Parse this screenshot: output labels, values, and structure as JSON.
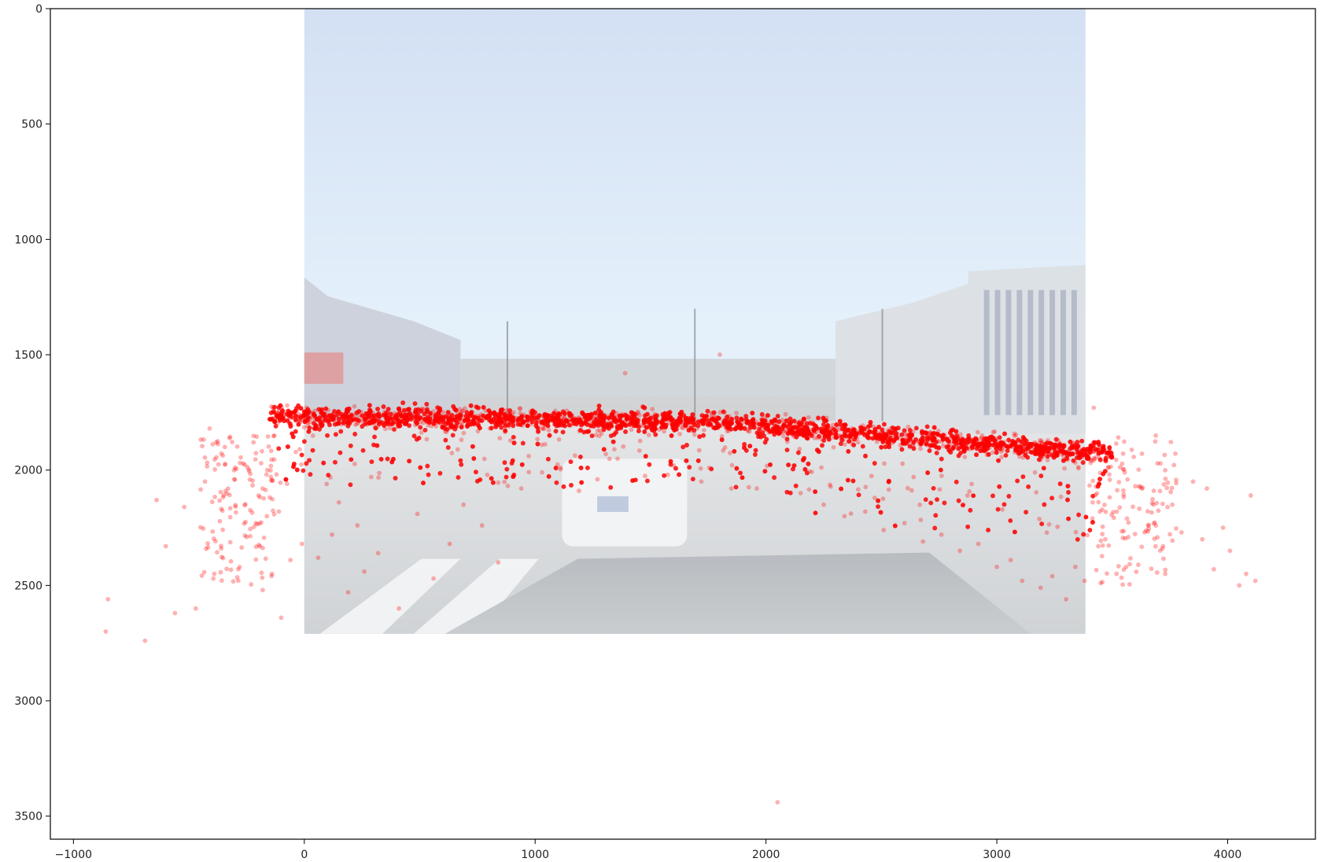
{
  "chart_data": {
    "type": "scatter",
    "title": "",
    "xlabel": "",
    "ylabel": "",
    "xlim": [
      -1100,
      4380
    ],
    "ylim": [
      3600,
      0
    ],
    "y_inverted": true,
    "grid": false,
    "legend": "none",
    "x_ticks": [
      "−1000",
      "0",
      "1000",
      "2000",
      "3000",
      "4000"
    ],
    "x_tick_values": [
      -1000,
      0,
      1000,
      2000,
      3000,
      4000
    ],
    "y_ticks": [
      "0",
      "500",
      "1000",
      "1500",
      "2000",
      "2500",
      "3000",
      "3500"
    ],
    "y_tick_values": [
      0,
      500,
      1000,
      1500,
      2000,
      2500,
      3000,
      3500
    ],
    "background_image": {
      "description_key": "road-scene-photo",
      "extent": {
        "x": [
          0,
          3384
        ],
        "y": [
          0,
          2710
        ]
      }
    },
    "series": [
      {
        "marker_color": "#ff0000",
        "marker_alpha": 0.3,
        "points": [
          [
            -850,
            2560
          ],
          [
            -860,
            2700
          ],
          [
            -690,
            2740
          ],
          [
            -640,
            2130
          ],
          [
            -600,
            2330
          ],
          [
            -560,
            2620
          ],
          [
            -520,
            2160
          ],
          [
            -470,
            2600
          ],
          [
            -430,
            2050
          ],
          [
            -410,
            1820
          ],
          [
            -390,
            2450
          ],
          [
            -360,
            2340
          ],
          [
            -330,
            2080
          ],
          [
            -300,
            1990
          ],
          [
            -280,
            2420
          ],
          [
            -250,
            2290
          ],
          [
            -220,
            1880
          ],
          [
            -210,
            2230
          ],
          [
            -180,
            2520
          ],
          [
            -160,
            2000
          ],
          [
            -140,
            2450
          ],
          [
            -130,
            1850
          ],
          [
            -110,
            2180
          ],
          [
            -100,
            2640
          ],
          [
            -80,
            2040
          ],
          [
            -60,
            2390
          ],
          [
            -40,
            1760
          ],
          [
            -20,
            1910
          ],
          [
            -10,
            2320
          ],
          [
            60,
            2380
          ],
          [
            120,
            2280
          ],
          [
            150,
            2140
          ],
          [
            190,
            2530
          ],
          [
            230,
            2240
          ],
          [
            260,
            2440
          ],
          [
            290,
            2030
          ],
          [
            320,
            2360
          ],
          [
            410,
            2600
          ],
          [
            490,
            2190
          ],
          [
            560,
            2470
          ],
          [
            630,
            2320
          ],
          [
            690,
            2150
          ],
          [
            770,
            2240
          ],
          [
            840,
            2400
          ],
          [
            940,
            2080
          ],
          [
            1030,
            2010
          ],
          [
            1110,
            1990
          ],
          [
            1190,
            2090
          ],
          [
            1270,
            2040
          ],
          [
            1390,
            1580
          ],
          [
            1600,
            1980
          ],
          [
            1720,
            2050
          ],
          [
            1800,
            1500
          ],
          [
            1850,
            2080
          ],
          [
            1960,
            2080
          ],
          [
            2050,
            3440
          ],
          [
            2150,
            2100
          ],
          [
            2250,
            2150
          ],
          [
            2340,
            2200
          ],
          [
            2430,
            2180
          ],
          [
            2510,
            2260
          ],
          [
            2600,
            2230
          ],
          [
            2680,
            2310
          ],
          [
            2760,
            2280
          ],
          [
            2840,
            2350
          ],
          [
            2920,
            2320
          ],
          [
            3000,
            2420
          ],
          [
            3060,
            2390
          ],
          [
            3110,
            2480
          ],
          [
            3190,
            2510
          ],
          [
            3240,
            2460
          ],
          [
            3300,
            2560
          ],
          [
            3340,
            2420
          ],
          [
            3380,
            2480
          ],
          [
            3420,
            1730
          ],
          [
            3450,
            2490
          ],
          [
            3470,
            2300
          ],
          [
            3520,
            2180
          ],
          [
            3560,
            2420
          ],
          [
            3600,
            2070
          ],
          [
            3640,
            2270
          ],
          [
            3680,
            2090
          ],
          [
            3720,
            2330
          ],
          [
            3760,
            2150
          ],
          [
            3800,
            2270
          ],
          [
            3850,
            2050
          ],
          [
            3890,
            2300
          ],
          [
            3910,
            2080
          ],
          [
            3940,
            2430
          ],
          [
            3980,
            2250
          ],
          [
            4010,
            2350
          ],
          [
            4050,
            2500
          ],
          [
            4080,
            2450
          ],
          [
            4100,
            2110
          ],
          [
            4120,
            2480
          ]
        ],
        "band": {
          "x_start": -150,
          "x_end": 3500,
          "center_y_left": 1770,
          "center_y_mid": 1790,
          "x_mid": 1700,
          "center_y_right": 1930,
          "core_half_width": 90,
          "lower_spread": 320,
          "approx_point_count": 9000
        }
      }
    ]
  }
}
